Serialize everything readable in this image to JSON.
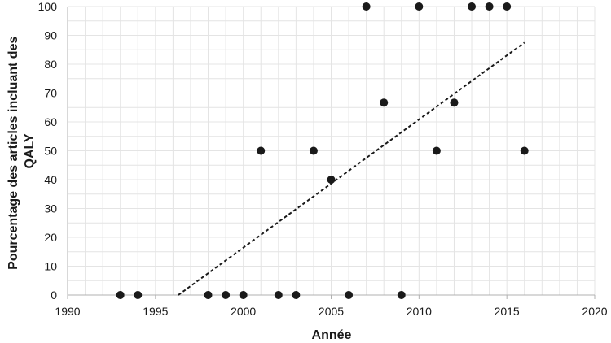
{
  "chart_data": {
    "type": "scatter",
    "title": "",
    "xlabel": "Année",
    "ylabel_lines": [
      "Pourcentage des articles incluant des",
      "QALY"
    ],
    "xlim": [
      1990,
      2020
    ],
    "ylim": [
      0,
      100
    ],
    "x_ticks": [
      1990,
      1995,
      2000,
      2005,
      2010,
      2015,
      2020
    ],
    "y_ticks": [
      0,
      10,
      20,
      30,
      40,
      50,
      60,
      70,
      80,
      90,
      100
    ],
    "grid": true,
    "grid_step_x": 1,
    "grid_step_y": 5,
    "point_color": "#1a1a1a",
    "points": [
      {
        "x": 1993,
        "y": 0
      },
      {
        "x": 1994,
        "y": 0
      },
      {
        "x": 1998,
        "y": 0
      },
      {
        "x": 1999,
        "y": 0
      },
      {
        "x": 2000,
        "y": 0
      },
      {
        "x": 2001,
        "y": 50
      },
      {
        "x": 2002,
        "y": 0
      },
      {
        "x": 2003,
        "y": 0
      },
      {
        "x": 2004,
        "y": 50
      },
      {
        "x": 2005,
        "y": 40
      },
      {
        "x": 2006,
        "y": 0
      },
      {
        "x": 2007,
        "y": 100
      },
      {
        "x": 2008,
        "y": 66.7
      },
      {
        "x": 2009,
        "y": 0
      },
      {
        "x": 2010,
        "y": 100
      },
      {
        "x": 2011,
        "y": 50
      },
      {
        "x": 2012,
        "y": 66.7
      },
      {
        "x": 2013,
        "y": 100
      },
      {
        "x": 2014,
        "y": 100
      },
      {
        "x": 2015,
        "y": 100
      },
      {
        "x": 2016,
        "y": 50
      }
    ],
    "trendline": {
      "style": "dashed",
      "start": {
        "x": 1996.3,
        "y": 0
      },
      "end": {
        "x": 2016,
        "y": 87.5
      }
    }
  }
}
